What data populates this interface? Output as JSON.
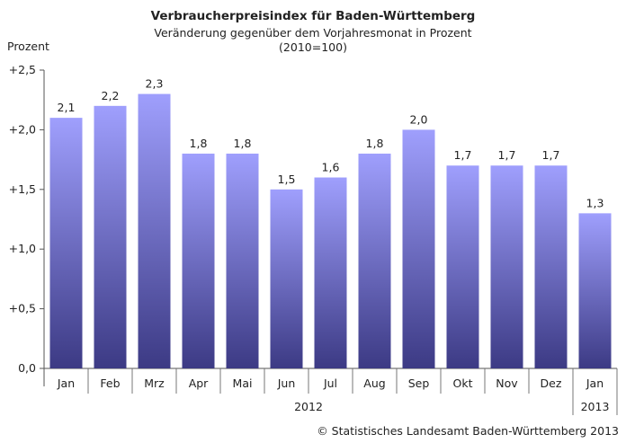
{
  "chart_data": {
    "type": "bar",
    "title": "Verbraucherpreisindex für Baden-Württemberg",
    "subtitle": "Veränderung gegenüber dem Vorjahresmonat in Prozent",
    "subtitle2": "(2010=100)",
    "ylabel": "Prozent",
    "xlabel": "",
    "categories": [
      "Jan",
      "Feb",
      "Mrz",
      "Apr",
      "Mai",
      "Jun",
      "Jul",
      "Aug",
      "Sep",
      "Okt",
      "Nov",
      "Dez",
      "Jan"
    ],
    "values": [
      2.1,
      2.2,
      2.3,
      1.8,
      1.8,
      1.5,
      1.6,
      1.8,
      2.0,
      1.7,
      1.7,
      1.7,
      1.3
    ],
    "value_labels": [
      "2,1",
      "2,2",
      "2,3",
      "1,8",
      "1,8",
      "1,5",
      "1,6",
      "1,8",
      "2,0",
      "1,7",
      "1,7",
      "1,7",
      "1,3"
    ],
    "ylim": [
      0,
      2.5
    ],
    "yticks": [
      0,
      0.5,
      1.0,
      1.5,
      2.0,
      2.5
    ],
    "ytick_labels": [
      "0,0",
      "+0,5",
      "+1,0",
      "+1,5",
      "+2,0",
      "+2,5"
    ],
    "year_groups": [
      {
        "label": "2012",
        "start": 0,
        "end": 11
      },
      {
        "label": "2013",
        "start": 12,
        "end": 12
      }
    ],
    "grid": false,
    "bar_color_top": "#9f9ffd",
    "bar_color_bottom": "#3c3a84",
    "source": "© Statistisches Landesamt Baden-Württemberg 2013"
  }
}
